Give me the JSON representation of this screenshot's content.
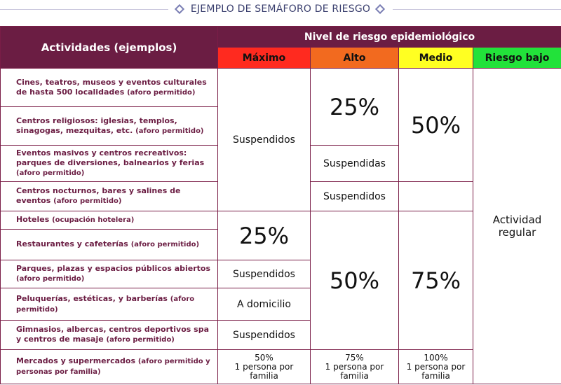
{
  "title": "EJEMPLO DE SEMÁFORO DE RIESGO",
  "header": {
    "activities": "Actividades (ejemplos)",
    "risk_level": "Nivel de riesgo epidemiológico",
    "levels": {
      "max": "Máximo",
      "high": "Alto",
      "medium": "Medio",
      "low": "Riesgo bajo"
    }
  },
  "colors": {
    "header_purple": "#6b1d43",
    "max": "#ff2a1f",
    "high": "#f26a1f",
    "medium": "#ffff22",
    "low": "#22e23a"
  },
  "activities": [
    {
      "name": "Cines, teatros, museos y eventos culturales de hasta 500 localidades",
      "note": "(aforo permitido)"
    },
    {
      "name": "Centros religiosos: iglesias, templos, sinagogas, mezquitas, etc.",
      "note": "(aforo permitido)"
    },
    {
      "name": "Eventos masivos y centros recreativos: parques de diversiones, balnearios y ferias",
      "note": "(aforo permitido)"
    },
    {
      "name": "Centros nocturnos, bares y salines de eventos",
      "note": "(aforo permitido)"
    },
    {
      "name": "Hoteles",
      "note": "(ocupación hotelera)"
    },
    {
      "name": "Restaurantes y cafeterías",
      "note": "(aforo permitido)"
    },
    {
      "name": "Parques, plazas y espacios públicos abiertos",
      "note": "(aforo permitido)"
    },
    {
      "name": "Peluquerías, estéticas, y barberías",
      "note": "(aforo permitido)"
    },
    {
      "name": "Gimnasios, albercas, centros deportivos spa y centros de masaje",
      "note": "(aforo permitido)"
    },
    {
      "name": "Mercados y supermercados",
      "note": "(aforo permitido y personas por familia)"
    }
  ],
  "values": {
    "max_group1": "Suspendidos",
    "high_group1": "25%",
    "medium_group1": "50%",
    "high_row3": "Suspendidas",
    "high_row4": "Suspendidos",
    "low_all": "Actividad regular",
    "max_group2": "25%",
    "high_group2": "50%",
    "medium_group2": "75%",
    "max_row7": "Suspendidos",
    "max_row8": "A domicilio",
    "max_row9": "Suspendidos",
    "market_max": {
      "pct": "50%",
      "l1": "1 persona por",
      "l2": "familia"
    },
    "market_high": {
      "pct": "75%",
      "l1": "1 persona por",
      "l2": "familia"
    },
    "market_medium": {
      "pct": "100%",
      "l1": "1 persona por",
      "l2": "familia"
    }
  }
}
